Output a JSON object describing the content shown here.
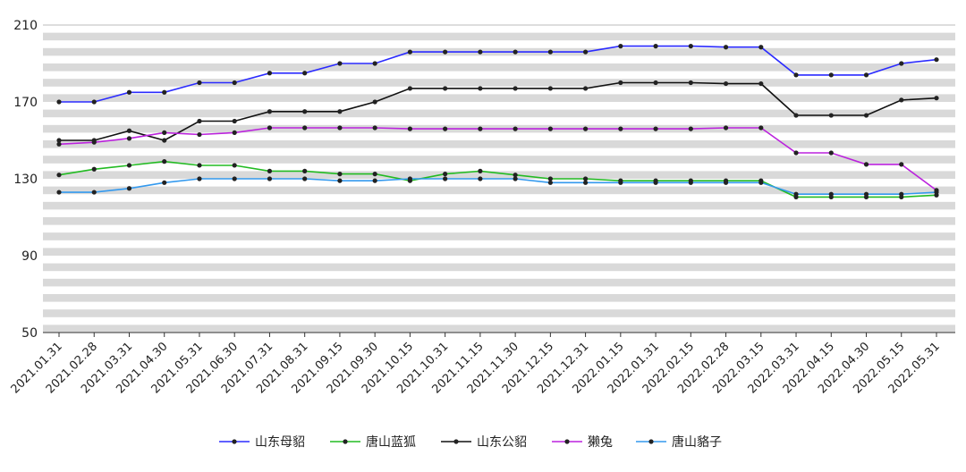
{
  "chart_data": {
    "type": "line",
    "title": "",
    "xlabel": "",
    "ylabel": "",
    "ylim": [
      50,
      210
    ],
    "yticks": [
      50,
      90,
      130,
      170,
      210
    ],
    "grid": "horizontal alternating bands",
    "legend_position": "bottom",
    "categories": [
      "2021.01.31",
      "2021.02.28",
      "2021.03.31",
      "2021.04.30",
      "2021.05.31",
      "2021.06.30",
      "2021.07.31",
      "2021.08.31",
      "2021.09.15",
      "2021.09.30",
      "2021.10.15",
      "2021.10.31",
      "2021.11.15",
      "2021.11.30",
      "2021.12.15",
      "2021.12.31",
      "2022.01.15",
      "2022.01.31",
      "2022.02.15",
      "2022.02.28",
      "2022.03.15",
      "2022.03.31",
      "2022.04.15",
      "2022.04.30",
      "2022.05.15",
      "2022.05.31"
    ],
    "series": [
      {
        "name": "山东母貂",
        "color": "#2b2bff",
        "values": [
          170,
          170,
          175,
          175,
          180,
          180,
          185,
          185,
          190,
          190,
          196,
          196,
          196,
          196,
          196,
          196,
          199,
          199,
          199,
          198.5,
          198.5,
          184,
          184,
          184,
          190,
          192
        ]
      },
      {
        "name": "唐山蓝狐",
        "color": "#22bb22",
        "values": [
          132,
          135,
          137,
          139,
          137,
          137,
          134,
          134,
          132.5,
          132.5,
          129,
          132.5,
          134,
          132,
          130,
          130,
          129,
          129,
          129,
          129,
          129,
          120.5,
          120.5,
          120.5,
          120.5,
          121.5
        ]
      },
      {
        "name": "山东公貂",
        "color": "#111111",
        "values": [
          150,
          150,
          155,
          150,
          160,
          160,
          165,
          165,
          165,
          170,
          177,
          177,
          177,
          177,
          177,
          177,
          180,
          180,
          180,
          179.5,
          179.5,
          163,
          163,
          163,
          171,
          172
        ]
      },
      {
        "name": "獭兔",
        "color": "#bb22dd",
        "values": [
          148,
          149,
          151,
          154,
          153,
          154,
          156.5,
          156.5,
          156.5,
          156.5,
          156,
          156,
          156,
          156,
          156,
          156,
          156,
          156,
          156,
          156.5,
          156.5,
          143.5,
          143.5,
          137.5,
          137.5,
          124
        ]
      },
      {
        "name": "唐山貉子",
        "color": "#3399ee",
        "values": [
          123,
          123,
          125,
          128,
          130,
          130,
          130,
          130,
          129,
          129,
          130,
          130,
          130,
          130,
          128,
          128,
          128,
          128,
          128,
          128,
          128,
          122,
          122,
          122,
          122,
          123
        ]
      }
    ]
  }
}
